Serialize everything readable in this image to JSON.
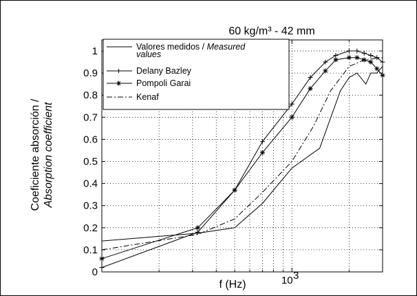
{
  "chart_data": {
    "type": "line",
    "title": "60 kg/m³ - 42 mm",
    "xlabel": "f (Hz)",
    "ylabel_line1": "Coeficiente absorción /",
    "ylabel_line2": "Absorption coefficient",
    "x_scale": "log",
    "xlim": [
      100,
      3000
    ],
    "x_tick_label": "10",
    "x_tick_exponent": "3",
    "ylim": [
      0,
      1.05
    ],
    "y_ticks": [
      0,
      0.1,
      0.2,
      0.3,
      0.4,
      0.5,
      0.6,
      0.7,
      0.8,
      0.9,
      1
    ],
    "y_tick_labels": [
      "0",
      "0.1",
      "0.2",
      "0.3",
      "0.4",
      "0.5",
      "0.6",
      "0.7",
      "0.8",
      "0.9",
      "1"
    ],
    "grid": true,
    "legend_position": "top-left",
    "legend": [
      {
        "name": "Valores medidos / ",
        "name_italic": "Measured",
        "name_line2": "values"
      },
      {
        "name": "Delany Bazley"
      },
      {
        "name": "Pompoli Garai"
      },
      {
        "name": "Kenaf"
      }
    ],
    "series": [
      {
        "key": "measured",
        "style": "solid",
        "marker": "none",
        "points": [
          [
            100,
            0.14
          ],
          [
            320,
            0.175
          ],
          [
            500,
            0.2
          ],
          [
            700,
            0.31
          ],
          [
            1000,
            0.47
          ],
          [
            1400,
            0.56
          ],
          [
            1800,
            0.82
          ],
          [
            2000,
            0.88
          ],
          [
            2200,
            0.9
          ],
          [
            2450,
            0.85
          ],
          [
            2600,
            0.9
          ],
          [
            2800,
            0.9
          ],
          [
            3000,
            0.93
          ]
        ]
      },
      {
        "key": "delany_bazley",
        "style": "solid",
        "marker": "plus",
        "points": [
          [
            100,
            0.02
          ],
          [
            320,
            0.18
          ],
          [
            500,
            0.37
          ],
          [
            700,
            0.59
          ],
          [
            1000,
            0.76
          ],
          [
            1250,
            0.88
          ],
          [
            1500,
            0.95
          ],
          [
            1700,
            0.98
          ],
          [
            2000,
            1.0
          ],
          [
            2200,
            1.0
          ],
          [
            2400,
            0.99
          ],
          [
            2600,
            0.98
          ],
          [
            2800,
            0.97
          ],
          [
            3000,
            0.95
          ]
        ]
      },
      {
        "key": "pompoli_garai",
        "style": "solid",
        "marker": "star",
        "points": [
          [
            100,
            0.06
          ],
          [
            320,
            0.2
          ],
          [
            500,
            0.37
          ],
          [
            700,
            0.54
          ],
          [
            1000,
            0.7
          ],
          [
            1250,
            0.83
          ],
          [
            1500,
            0.91
          ],
          [
            1700,
            0.96
          ],
          [
            2000,
            0.97
          ],
          [
            2200,
            0.97
          ],
          [
            2400,
            0.96
          ],
          [
            2600,
            0.95
          ],
          [
            2800,
            0.92
          ],
          [
            3000,
            0.89
          ]
        ]
      },
      {
        "key": "kenaf",
        "style": "dashdot",
        "marker": "none",
        "points": [
          [
            100,
            0.1
          ],
          [
            320,
            0.17
          ],
          [
            500,
            0.24
          ],
          [
            700,
            0.36
          ],
          [
            1000,
            0.5
          ],
          [
            1300,
            0.66
          ],
          [
            1600,
            0.82
          ],
          [
            2000,
            0.93
          ],
          [
            2400,
            0.96
          ],
          [
            3000,
            0.97
          ]
        ]
      }
    ]
  }
}
